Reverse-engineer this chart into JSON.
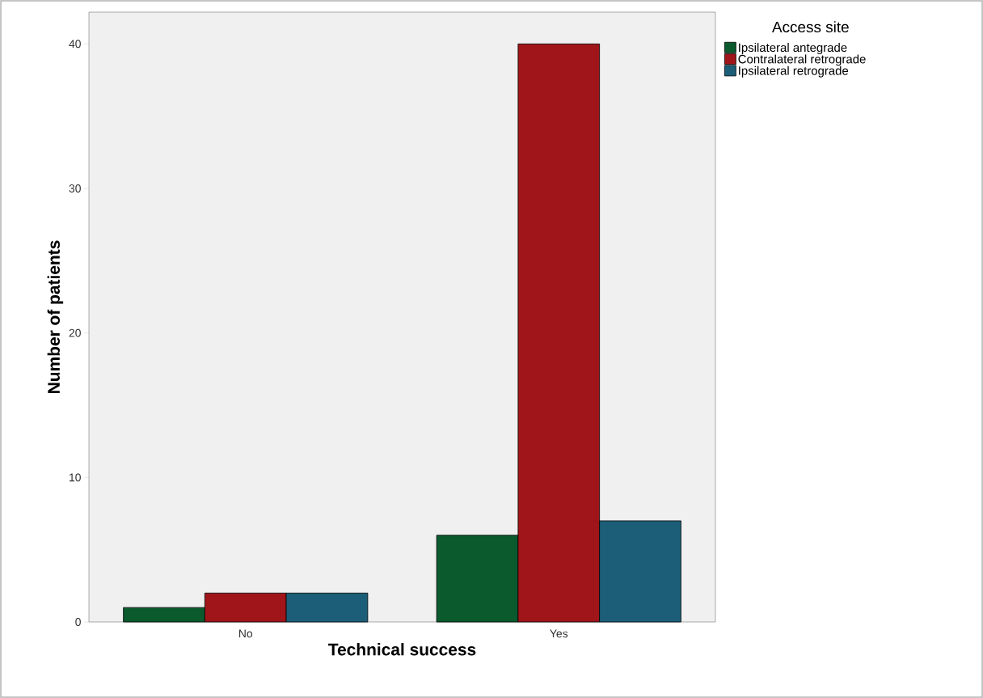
{
  "chart_data": {
    "type": "bar",
    "xlabel": "Technical success",
    "ylabel": "Number of patients",
    "legend_title": "Access site",
    "categories": [
      "No",
      "Yes"
    ],
    "series": [
      {
        "name": "Ipsilateral antegrade",
        "color": "#0b5a2e",
        "values": [
          1,
          6
        ]
      },
      {
        "name": "Contralateral retrograde",
        "color": "#a01519",
        "values": [
          2,
          40
        ]
      },
      {
        "name": "Ipsilateral retrograde",
        "color": "#1c5e78",
        "values": [
          2,
          7
        ]
      }
    ],
    "ylim": [
      0,
      42.2
    ],
    "yticks": [
      0,
      10,
      20,
      30,
      40
    ],
    "legend": "top right"
  }
}
